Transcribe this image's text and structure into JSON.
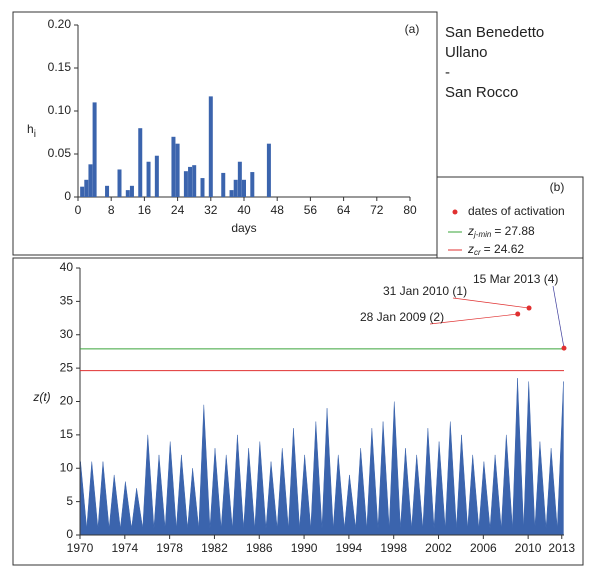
{
  "side_text": [
    "San Benedetto",
    "Ullano",
    "-",
    "San Rocco"
  ],
  "chart_data": [
    {
      "type": "bar",
      "panel_label": "(a)",
      "x_label": "days",
      "y_label": "h",
      "y_label_sub": "i",
      "x": [
        1,
        2,
        3,
        4,
        7,
        10,
        12,
        13,
        15,
        17,
        19,
        23,
        24,
        26,
        27,
        28,
        30,
        32,
        35,
        37,
        38,
        39,
        40,
        42,
        46
      ],
      "values": [
        0.012,
        0.02,
        0.038,
        0.11,
        0.013,
        0.032,
        0.008,
        0.013,
        0.08,
        0.041,
        0.048,
        0.07,
        0.062,
        0.03,
        0.035,
        0.037,
        0.022,
        0.117,
        0.028,
        0.008,
        0.02,
        0.041,
        0.02,
        0.029,
        0.062
      ],
      "color": "#3b64ad",
      "xlim": [
        0,
        80
      ],
      "xticks": [
        0,
        8,
        16,
        24,
        32,
        40,
        48,
        56,
        64,
        72,
        80
      ],
      "ylim": [
        0,
        0.2
      ],
      "yticks": [
        0,
        0.05,
        {
          "value": 0.1,
          "label": "0.10"
        },
        0.15,
        {
          "value": 0.2,
          "label": "0.20"
        }
      ]
    },
    {
      "type": "area",
      "panel_label": "(b)",
      "y_label": "z(t)",
      "color": "#3b64ad",
      "x": [
        1970.05,
        1970.6,
        1971.05,
        1971.6,
        1972.05,
        1972.6,
        1973.05,
        1973.6,
        1974.05,
        1974.6,
        1975.05,
        1975.6,
        1976.05,
        1976.6,
        1977.05,
        1977.6,
        1978.05,
        1978.6,
        1979.05,
        1979.6,
        1980.05,
        1980.6,
        1981.05,
        1981.6,
        1982.05,
        1982.6,
        1983.05,
        1983.6,
        1984.05,
        1984.6,
        1985.05,
        1985.6,
        1986.05,
        1986.6,
        1987.05,
        1987.6,
        1988.05,
        1988.6,
        1989.05,
        1989.6,
        1990.05,
        1990.6,
        1991.05,
        1991.6,
        1992.05,
        1992.6,
        1993.05,
        1993.6,
        1994.05,
        1994.6,
        1995.05,
        1995.6,
        1996.05,
        1996.6,
        1997.05,
        1997.6,
        1998.05,
        1998.6,
        1999.05,
        1999.6,
        2000.05,
        2000.6,
        2001.05,
        2001.6,
        2002.05,
        2002.6,
        2003.05,
        2003.6,
        2004.05,
        2004.6,
        2005.05,
        2005.6,
        2006.05,
        2006.6,
        2007.05,
        2007.6,
        2008.05,
        2008.6,
        2009.05,
        2009.6,
        2010.05,
        2010.6,
        2011.05,
        2011.6,
        2012.05,
        2012.6,
        2013.15
      ],
      "values": [
        11,
        1,
        11,
        1,
        11,
        1,
        9,
        1,
        8,
        1,
        7,
        1,
        15,
        1,
        12,
        1,
        14,
        1,
        12,
        1,
        10,
        1,
        19.5,
        1,
        13,
        1,
        12,
        1,
        15,
        1,
        13,
        1,
        14,
        1,
        11,
        1,
        13,
        1,
        16,
        1,
        12,
        1,
        17,
        1,
        19,
        1,
        12,
        1,
        9,
        1,
        13,
        1,
        16,
        1,
        17,
        1,
        20,
        1,
        13,
        1,
        12,
        1,
        16,
        1,
        14,
        1,
        17,
        1,
        15,
        1,
        12,
        1,
        11,
        1,
        12,
        1,
        15,
        1,
        23.5,
        1,
        23,
        1,
        14,
        1,
        13,
        1,
        23
      ],
      "xlim": [
        1970,
        2013.2
      ],
      "xticks": [
        1970,
        1974,
        1978,
        1982,
        1986,
        1990,
        1994,
        1998,
        2002,
        2006,
        2010,
        2013
      ],
      "ylim": [
        0,
        40
      ],
      "yticks": [
        0,
        5,
        10,
        15,
        20,
        25,
        30,
        35,
        40
      ],
      "activation": {
        "name": "dates of activation",
        "color": "#e03030",
        "x": [
          2010.08,
          2009.07,
          2013.2
        ],
        "values": [
          34,
          33.1,
          28
        ],
        "labels": [
          "31 Jan 2010 (1)",
          "28 Jan 2009 (2)",
          "15 Mar 2013 (4)"
        ],
        "label_colors": [
          "#e03030",
          "#e03030",
          "#3a3a9a"
        ]
      },
      "thresholds": [
        {
          "symbol": "z",
          "subscript": "j-min",
          "label": "= 27.88",
          "value": 27.88,
          "color": "#3aa53a"
        },
        {
          "symbol": "z",
          "subscript": "cr",
          "label": "= 24.62",
          "value": 24.62,
          "color": "#e03030"
        }
      ]
    }
  ]
}
